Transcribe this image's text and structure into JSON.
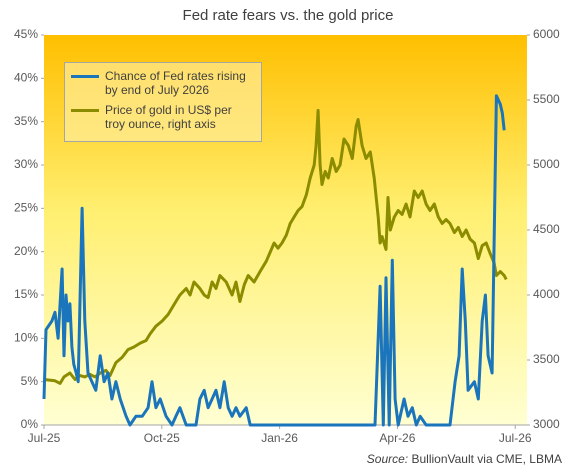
{
  "chart_data": {
    "type": "line",
    "title": "Fed rate fears vs. the gold price",
    "source_label": "Source:",
    "source": "BullionVault via CME, LBMA",
    "xlim": [
      0,
      12.3
    ],
    "xticks": [
      {
        "value": 0,
        "label": "Jul-25"
      },
      {
        "value": 3,
        "label": "Oct-25"
      },
      {
        "value": 6,
        "label": "Jan-26"
      },
      {
        "value": 9,
        "label": "Apr-26"
      },
      {
        "value": 12,
        "label": "Jul-26"
      }
    ],
    "ylim": [
      0,
      45
    ],
    "yticks": [
      {
        "value": 0,
        "label": "0%"
      },
      {
        "value": 5,
        "label": "5%"
      },
      {
        "value": 10,
        "label": "10%"
      },
      {
        "value": 15,
        "label": "15%"
      },
      {
        "value": 20,
        "label": "20%"
      },
      {
        "value": 25,
        "label": "25%"
      },
      {
        "value": 30,
        "label": "30%"
      },
      {
        "value": 35,
        "label": "35%"
      },
      {
        "value": 40,
        "label": "40%"
      },
      {
        "value": 45,
        "label": "45%"
      }
    ],
    "y2lim": [
      3000,
      6000
    ],
    "y2ticks": [
      3000,
      3500,
      4000,
      4500,
      5000,
      5500,
      6000
    ],
    "legend": "top-left",
    "series": [
      {
        "name": "Chance of Fed rates rising by end of July 2026",
        "color": "#1b75bc",
        "x": [
          0,
          0.05,
          0.2,
          0.28,
          0.36,
          0.46,
          0.51,
          0.56,
          0.61,
          0.66,
          0.71,
          0.76,
          0.82,
          0.87,
          0.97,
          1.04,
          1.12,
          1.22,
          1.32,
          1.43,
          1.53,
          1.63,
          1.73,
          1.83,
          1.94,
          2.09,
          2.19,
          2.34,
          2.5,
          2.65,
          2.75,
          2.85,
          2.96,
          3.11,
          3.26,
          3.36,
          3.46,
          3.62,
          3.87,
          3.97,
          4.08,
          4.18,
          4.28,
          4.38,
          4.48,
          4.59,
          4.69,
          4.79,
          4.89,
          4.99,
          5.15,
          5.25,
          8.43,
          8.56,
          8.64,
          8.71,
          8.79,
          8.87,
          8.94,
          9.02,
          9.17,
          9.27,
          9.38,
          9.48,
          9.58,
          9.73,
          10.34,
          10.47,
          10.57,
          10.65,
          10.73,
          10.8,
          10.96,
          11.06,
          11.16,
          11.24,
          11.31,
          11.41,
          11.52,
          11.62,
          11.67,
          11.72
        ],
        "values": [
          3,
          11,
          12,
          13,
          10,
          18,
          8,
          15,
          12,
          14,
          9,
          7,
          6,
          5,
          25,
          12,
          6,
          5,
          4,
          8,
          5,
          6,
          3,
          5,
          3,
          1,
          0,
          1,
          1,
          2,
          5,
          2,
          3,
          1,
          0,
          1,
          2,
          0,
          0,
          3,
          4,
          2,
          3,
          4,
          2,
          5,
          2,
          1,
          2,
          1,
          2,
          0,
          0,
          16,
          0,
          17,
          0,
          19,
          3,
          0,
          3,
          1,
          2,
          0,
          1,
          0,
          0,
          5,
          8,
          18,
          12,
          4,
          5,
          3,
          12,
          15,
          8,
          6,
          38,
          37,
          36,
          34
        ]
      },
      {
        "name": "Price of gold in US$ per troy ounce, right axis",
        "color": "#8c8c00",
        "axis": "y2",
        "x": [
          0,
          0.28,
          0.41,
          0.51,
          0.66,
          0.79,
          0.92,
          1.04,
          1.17,
          1.3,
          1.43,
          1.58,
          1.68,
          1.83,
          1.99,
          2.14,
          2.29,
          2.45,
          2.6,
          2.7,
          2.85,
          3.01,
          3.16,
          3.26,
          3.36,
          3.46,
          3.62,
          3.72,
          3.82,
          3.97,
          4.08,
          4.18,
          4.28,
          4.38,
          4.48,
          4.64,
          4.79,
          4.89,
          4.99,
          5.1,
          5.2,
          5.35,
          5.5,
          5.66,
          5.76,
          5.86,
          5.96,
          6.06,
          6.17,
          6.27,
          6.37,
          6.47,
          6.57,
          6.68,
          6.78,
          6.88,
          6.93,
          6.98,
          7.03,
          7.08,
          7.16,
          7.24,
          7.34,
          7.44,
          7.54,
          7.64,
          7.75,
          7.85,
          7.95,
          8.0,
          8.1,
          8.2,
          8.31,
          8.41,
          8.51,
          8.56,
          8.61,
          8.71,
          8.76,
          8.82,
          8.92,
          9.02,
          9.12,
          9.22,
          9.32,
          9.43,
          9.53,
          9.63,
          9.73,
          9.83,
          9.94,
          10.04,
          10.14,
          10.24,
          10.34,
          10.45,
          10.55,
          10.65,
          10.75,
          10.85,
          10.96,
          11.06,
          11.16,
          11.26,
          11.36,
          11.46,
          11.52,
          11.62,
          11.72,
          11.77
        ],
        "values": [
          3350,
          3340,
          3320,
          3370,
          3400,
          3350,
          3380,
          3370,
          3390,
          3370,
          3400,
          3420,
          3380,
          3480,
          3520,
          3580,
          3600,
          3630,
          3650,
          3700,
          3760,
          3800,
          3850,
          3900,
          3950,
          4000,
          4050,
          4000,
          4100,
          4050,
          4000,
          3980,
          4100,
          4050,
          4150,
          4100,
          4000,
          4100,
          3950,
          4080,
          4150,
          4100,
          4180,
          4260,
          4330,
          4400,
          4360,
          4400,
          4460,
          4550,
          4600,
          4650,
          4680,
          4770,
          4900,
          5000,
          5150,
          5420,
          5000,
          4850,
          4950,
          4900,
          5050,
          4950,
          5000,
          5200,
          5150,
          5050,
          5300,
          5350,
          5150,
          5050,
          5100,
          4900,
          4600,
          4400,
          4450,
          4350,
          4750,
          4500,
          4600,
          4650,
          4620,
          4700,
          4600,
          4800,
          4750,
          4800,
          4700,
          4650,
          4700,
          4600,
          4550,
          4580,
          4550,
          4480,
          4520,
          4450,
          4500,
          4430,
          4400,
          4280,
          4380,
          4400,
          4320,
          4250,
          4150,
          4180,
          4150,
          4120
        ]
      }
    ]
  }
}
